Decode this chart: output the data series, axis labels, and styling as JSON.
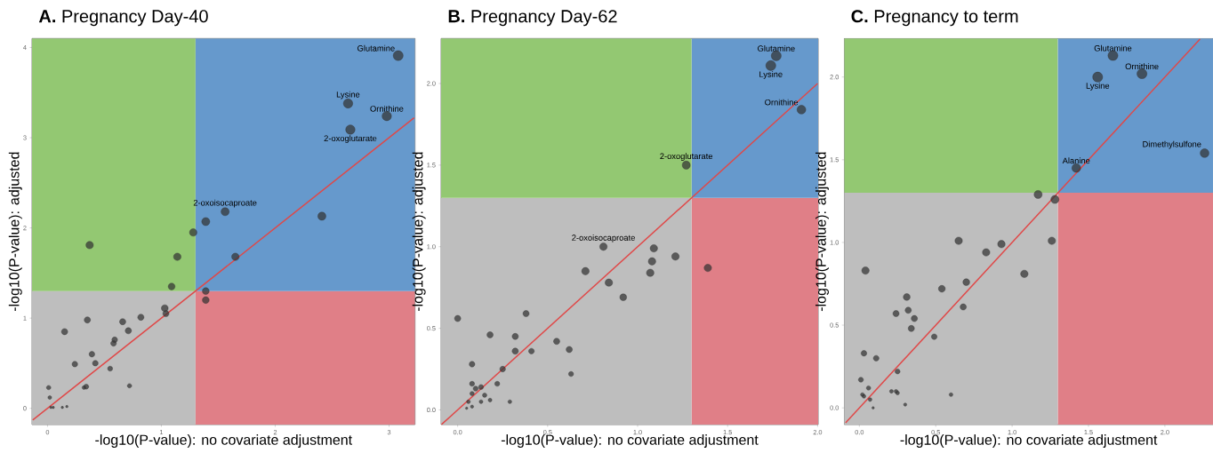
{
  "chart_data": [
    {
      "type": "bubble",
      "title": "**A.** Pregnancy Day-40",
      "xlabel": "-log10(P-value): no covariate adjustment",
      "ylabel": "-log10(P-value): adjusted",
      "xlim": [
        -0.136,
        3.228
      ],
      "ylim": [
        -0.18,
        4.1
      ],
      "xticks": [
        0,
        1,
        2,
        3
      ],
      "yticks": [
        0,
        1,
        2,
        3,
        4
      ],
      "bands": [
        {
          "axis": "x",
          "from": -0.136,
          "to": 1.3,
          "color": "#bebebe"
        },
        {
          "axis": "x",
          "from": -0.136,
          "to": 1.3,
          "color": "#93c872"
        },
        {
          "axis": "x",
          "from": 1.3,
          "to": 3.228,
          "color": "#e07f87"
        },
        {
          "axis": "x",
          "from": 1.3,
          "to": 3.228,
          "color": "#6699cc"
        }
      ],
      "series": [
        {
          "color": "#333333",
          "x": [
            3.08,
            2.64,
            2.98,
            2.66,
            1.56,
            1.39,
            2.41,
            1.28,
            0.37,
            1.14,
            1.65,
            1.09,
            1.39,
            1.39,
            1.03,
            1.04,
            0.35,
            0.66,
            0.82,
            0.15,
            0.71,
            0.59,
            0.58,
            0.39,
            0.24,
            0.42,
            0.55,
            0.72,
            0.34,
            0.32,
            0.01,
            0.02,
            0.03,
            0.05,
            0.13,
            0.17
          ],
          "values": [
            3.91,
            3.38,
            3.24,
            3.09,
            2.18,
            2.07,
            2.13,
            1.95,
            1.81,
            1.68,
            1.68,
            1.35,
            1.3,
            1.2,
            1.11,
            1.05,
            0.98,
            0.96,
            1.01,
            0.85,
            0.86,
            0.76,
            0.72,
            0.6,
            0.49,
            0.5,
            0.44,
            0.25,
            0.24,
            0.23,
            0.23,
            0.12,
            0.01,
            0.01,
            0.01,
            0.02
          ],
          "sizes": [
            1,
            0.88,
            0.88,
            0.88,
            0.66,
            0.66,
            0.66,
            0.56,
            0.56,
            0.56,
            0.56,
            0.47,
            0.47,
            0.47,
            0.47,
            0.39,
            0.39,
            0.39,
            0.39,
            0.39,
            0.39,
            0.32,
            0.32,
            0.32,
            0.32,
            0.32,
            0.25,
            0.19,
            0.25,
            0.14,
            0.19,
            0.14,
            0.06,
            0.06,
            0.06,
            0.06
          ]
        },
        {
          "type": "line",
          "color": "#e04848",
          "x": [
            -0.13,
            3.22
          ],
          "values": [
            -0.13,
            3.22
          ]
        }
      ],
      "annotations": [
        {
          "text": "Glutamine",
          "x": 3.08,
          "y": 3.91
        },
        {
          "text": "Lysine",
          "x": 2.64,
          "y": 3.38
        },
        {
          "text": "Ornithine",
          "x": 2.98,
          "y": 3.24
        },
        {
          "text": "2-oxoglutarate",
          "x": 2.66,
          "y": 3.09
        },
        {
          "text": "2-oxoisocaproate",
          "x": 1.56,
          "y": 2.18
        }
      ]
    },
    {
      "type": "bubble",
      "title": "**B.** Pregnancy Day-62",
      "xlabel": "-log10(P-value): no covariate adjustment",
      "ylabel": "-log10(P-value): adjusted",
      "xlim": [
        -0.092,
        2.003
      ],
      "ylim": [
        -0.09,
        2.276
      ],
      "xticks": [
        {
          "value": 0,
          "label": "0.0"
        },
        0.5,
        {
          "value": 1,
          "label": "1.0"
        },
        1.5,
        {
          "value": 2,
          "label": "2.0"
        }
      ],
      "yticks": [
        {
          "value": 0,
          "label": "0.0"
        },
        0.5,
        {
          "value": 1,
          "label": "1.0"
        },
        1.5,
        {
          "value": 2,
          "label": "2.0"
        }
      ],
      "bands": [
        {
          "axis": "x",
          "from": -0.092,
          "to": 1.3,
          "color": "#bebebe"
        },
        {
          "axis": "x",
          "from": -0.092,
          "to": 1.3,
          "color": "#93c872"
        },
        {
          "axis": "x",
          "from": 1.3,
          "to": 2.003,
          "color": "#e07f87"
        },
        {
          "axis": "x",
          "from": 1.3,
          "to": 2.003,
          "color": "#6699cc"
        }
      ],
      "series": [
        {
          "color": "#333333",
          "x": [
            1.77,
            1.74,
            1.91,
            1.27,
            0.81,
            1.39,
            1.09,
            1.08,
            1.21,
            1.07,
            0.71,
            0.84,
            0.92,
            0.0,
            0.38,
            0.18,
            0.32,
            0.55,
            0.32,
            0.41,
            0.62,
            0.08,
            0.25,
            0.63,
            0.08,
            0.22,
            0.13,
            0.1,
            0.08,
            0.15,
            0.06,
            0.13,
            0.18,
            0.29,
            0.08,
            0.05
          ],
          "values": [
            2.17,
            2.11,
            1.84,
            1.5,
            1.0,
            0.87,
            0.99,
            0.91,
            0.94,
            0.84,
            0.85,
            0.78,
            0.69,
            0.56,
            0.59,
            0.46,
            0.45,
            0.42,
            0.36,
            0.36,
            0.37,
            0.28,
            0.25,
            0.22,
            0.16,
            0.16,
            0.14,
            0.13,
            0.1,
            0.09,
            0.05,
            0.05,
            0.06,
            0.05,
            0.02,
            0.01
          ],
          "sizes": [
            1,
            1,
            0.77,
            0.66,
            0.56,
            0.56,
            0.56,
            0.56,
            0.56,
            0.56,
            0.56,
            0.56,
            0.47,
            0.39,
            0.39,
            0.39,
            0.39,
            0.39,
            0.39,
            0.32,
            0.39,
            0.32,
            0.32,
            0.25,
            0.25,
            0.25,
            0.25,
            0.25,
            0.19,
            0.19,
            0.14,
            0.14,
            0.14,
            0.14,
            0.1,
            0.06
          ]
        },
        {
          "type": "line",
          "color": "#e04848",
          "x": [
            -0.09,
            2.0
          ],
          "values": [
            -0.09,
            2.0
          ]
        }
      ],
      "annotations": [
        {
          "text": "Glutamine",
          "x": 1.77,
          "y": 2.17
        },
        {
          "text": "Lysine",
          "x": 1.74,
          "y": 2.11
        },
        {
          "text": "Ornithine",
          "x": 1.91,
          "y": 1.84
        },
        {
          "text": "2-oxoglutarate",
          "x": 1.27,
          "y": 1.5
        },
        {
          "text": "2-oxoisocaproate",
          "x": 0.81,
          "y": 1.0
        }
      ]
    },
    {
      "type": "bubble",
      "title": "**C.** Pregnancy to term",
      "xlabel": "-log10(P-value): no covariate adjustment",
      "ylabel": "-log10(P-value): adjusted",
      "xlim": [
        -0.099,
        2.315
      ],
      "ylim": [
        -0.101,
        2.233
      ],
      "xticks": [
        {
          "value": 0,
          "label": "0.0"
        },
        0.5,
        {
          "value": 1,
          "label": "1.0"
        },
        1.5,
        {
          "value": 2,
          "label": "2.0"
        }
      ],
      "yticks": [
        {
          "value": 0,
          "label": "0.0"
        },
        0.5,
        {
          "value": 1,
          "label": "1.0"
        },
        1.5,
        {
          "value": 2,
          "label": "2.0"
        }
      ],
      "bands": [
        {
          "axis": "x",
          "from": -0.099,
          "to": 1.3,
          "color": "#bebebe"
        },
        {
          "axis": "x",
          "from": -0.099,
          "to": 1.3,
          "color": "#93c872"
        },
        {
          "axis": "x",
          "from": 1.3,
          "to": 2.315,
          "color": "#e07f87"
        },
        {
          "axis": "x",
          "from": 1.3,
          "to": 2.315,
          "color": "#6699cc"
        }
      ],
      "series": [
        {
          "color": "#333333",
          "x": [
            1.66,
            1.56,
            1.85,
            2.26,
            1.42,
            1.17,
            1.28,
            1.26,
            0.65,
            0.93,
            0.83,
            0.04,
            1.08,
            0.7,
            0.54,
            0.31,
            0.68,
            0.32,
            0.24,
            0.36,
            0.34,
            0.49,
            0.03,
            0.11,
            0.25,
            0.01,
            0.06,
            0.21,
            0.24,
            0.25,
            0.02,
            0.03,
            0.6,
            0.07,
            0.3,
            0.09
          ],
          "values": [
            2.13,
            2.0,
            2.02,
            1.54,
            1.45,
            1.29,
            1.26,
            1.01,
            1.01,
            0.99,
            0.94,
            0.83,
            0.81,
            0.76,
            0.72,
            0.67,
            0.61,
            0.59,
            0.57,
            0.54,
            0.48,
            0.43,
            0.33,
            0.3,
            0.22,
            0.17,
            0.12,
            0.1,
            0.1,
            0.09,
            0.08,
            0.07,
            0.08,
            0.05,
            0.02,
            0.0
          ],
          "sizes": [
            1,
            1,
            1,
            0.77,
            0.77,
            0.66,
            0.66,
            0.56,
            0.56,
            0.56,
            0.56,
            0.56,
            0.56,
            0.47,
            0.47,
            0.47,
            0.39,
            0.39,
            0.39,
            0.39,
            0.39,
            0.32,
            0.32,
            0.32,
            0.25,
            0.25,
            0.19,
            0.14,
            0.14,
            0.14,
            0.14,
            0.14,
            0.14,
            0.14,
            0.1,
            0.06
          ]
        },
        {
          "type": "line",
          "color": "#e04848",
          "x": [
            -0.09,
            2.23
          ],
          "values": [
            -0.09,
            2.23
          ]
        }
      ],
      "annotations": [
        {
          "text": "Glutamine",
          "x": 1.66,
          "y": 2.13
        },
        {
          "text": "Lysine",
          "x": 1.56,
          "y": 2.0
        },
        {
          "text": "Ornithine",
          "x": 1.85,
          "y": 2.02
        },
        {
          "text": "Dimethylsulfone",
          "x": 2.26,
          "y": 1.54
        },
        {
          "text": "Alanine",
          "x": 1.42,
          "y": 1.45
        }
      ]
    }
  ]
}
